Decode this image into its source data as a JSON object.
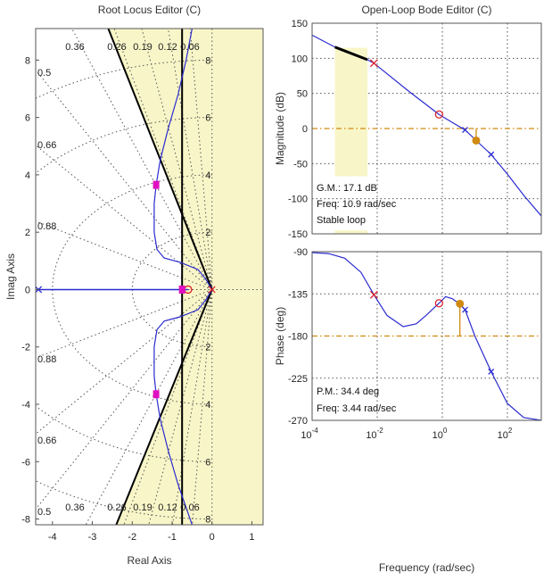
{
  "chart_data": [
    {
      "type": "line",
      "title": "Root Locus Editor (C)",
      "xlabel": "Real Axis",
      "ylabel": "Imag Axis",
      "xlim": [
        -4.42,
        1.28
      ],
      "ylim": [
        -8.2,
        9.1
      ],
      "xticks": [
        -4,
        -3,
        -2,
        -1,
        0,
        1
      ],
      "yticks": [
        -8,
        -6,
        -4,
        -2,
        0,
        2,
        4,
        6,
        8
      ],
      "damping_grid": [
        0.06,
        0.12,
        0.19,
        0.26,
        0.36,
        0.5,
        0.66,
        0.88
      ],
      "damping_labels_top": [
        "0.36",
        "0.26",
        "0.19",
        "0.12",
        "0.06"
      ],
      "damping_labels_left": [
        "0.5",
        "0.66",
        "0.88"
      ],
      "frequency_grid": [
        2,
        4,
        6,
        8
      ],
      "design_constraint": {
        "min_decay_real": -0.75,
        "damping_line_slope_points": [
          [
            0,
            0
          ],
          [
            -2.6,
            9.1
          ],
          [
            -2.4,
            -8.2
          ]
        ]
      },
      "poles": [
        [
          -4.35,
          0
        ],
        [
          0,
          0
        ]
      ],
      "zeros": [
        [
          -0.6,
          0
        ]
      ],
      "closed_loop_poles": [
        [
          -1.4,
          3.65
        ],
        [
          -1.4,
          -3.65
        ],
        [
          -0.75,
          0
        ]
      ],
      "branches": [
        [
          [
            -4.35,
            0
          ],
          [
            -0.6,
            0
          ]
        ],
        [
          [
            0,
            0
          ],
          [
            -0.15,
            0.35
          ],
          [
            -0.35,
            0.7
          ],
          [
            -0.8,
            0.95
          ],
          [
            -1.2,
            1.1
          ],
          [
            -1.38,
            1.4
          ],
          [
            -1.45,
            2
          ],
          [
            -1.45,
            3
          ],
          [
            -1.4,
            3.65
          ],
          [
            -1.3,
            4.5
          ],
          [
            -1.1,
            5.6
          ],
          [
            -0.85,
            6.8
          ],
          [
            -0.65,
            8
          ],
          [
            -0.5,
            9.1
          ]
        ],
        [
          [
            0,
            0
          ],
          [
            -0.15,
            -0.35
          ],
          [
            -0.35,
            -0.7
          ],
          [
            -0.8,
            -0.95
          ],
          [
            -1.2,
            -1.1
          ],
          [
            -1.38,
            -1.4
          ],
          [
            -1.45,
            -2
          ],
          [
            -1.45,
            -3
          ],
          [
            -1.4,
            -3.65
          ],
          [
            -1.3,
            -4.5
          ],
          [
            -1.1,
            -5.6
          ],
          [
            -0.85,
            -6.8
          ],
          [
            -0.65,
            -7.6
          ],
          [
            -0.5,
            -8.2
          ]
        ]
      ]
    },
    {
      "type": "line",
      "title": "Open-Loop Bode Editor (C)",
      "xlabel": "Frequency (rad/sec)",
      "xscale": "log",
      "xlim": [
        0.0001,
        1120
      ],
      "xticks": [
        "10^-4",
        "10^-2",
        "10^0",
        "10^2"
      ],
      "magnitude": {
        "ylabel": "Magnitude (dB)",
        "ylim": [
          -150,
          150
        ],
        "yticks": [
          -150,
          -100,
          -50,
          0,
          50,
          100,
          150
        ],
        "log10_freq": [
          -4,
          -3.3,
          -2.3,
          -2.1,
          -1,
          -0.1,
          0.4,
          0.7,
          1.04,
          1.5,
          2,
          2.5,
          3.05
        ],
        "values": [
          133,
          116,
          98,
          93,
          52,
          20,
          6,
          -2,
          -17,
          -37,
          -65,
          -95,
          -125
        ],
        "open_loop_poles_log10_freq": [
          -2.1
        ],
        "open_loop_zero_log10_freq": [
          -0.1
        ],
        "gain_margin_point": {
          "log10_freq": 1.04,
          "value": -17.1
        }
      },
      "phase": {
        "ylabel": "Phase (deg)",
        "ylim": [
          -270,
          -90
        ],
        "yticks": [
          -270,
          -225,
          -180,
          -135,
          -90
        ],
        "log10_freq": [
          -4,
          -3.5,
          -3,
          -2.5,
          -2.1,
          -1.7,
          -1.2,
          -0.8,
          -0.5,
          -0.1,
          0.1,
          0.3,
          0.55,
          0.7,
          1,
          1.5,
          2,
          2.5,
          3.05
        ],
        "values": [
          -91,
          -92,
          -97,
          -112,
          -136,
          -158,
          -170,
          -167,
          -158,
          -145,
          -138,
          -140,
          -146,
          -152,
          -180,
          -218,
          -252,
          -267,
          -270
        ],
        "phase_margin_point": {
          "log10_freq": 0.54,
          "value": -145.6
        }
      },
      "annotations": {
        "gm": "G.M.: 17.1 dB",
        "gm_freq": "Freq: 10.9 rad/sec",
        "stability": "Stable loop",
        "pm": "P.M.: 34.4 deg",
        "pm_freq": "Freq: 3.44 rad/sec"
      }
    }
  ],
  "colors": {
    "locus": "#2a2ad0",
    "pole_zero": "#e0202a",
    "closed_loop": "#e010c0",
    "region": "#f8f6c8",
    "margin": "#d08a10"
  }
}
